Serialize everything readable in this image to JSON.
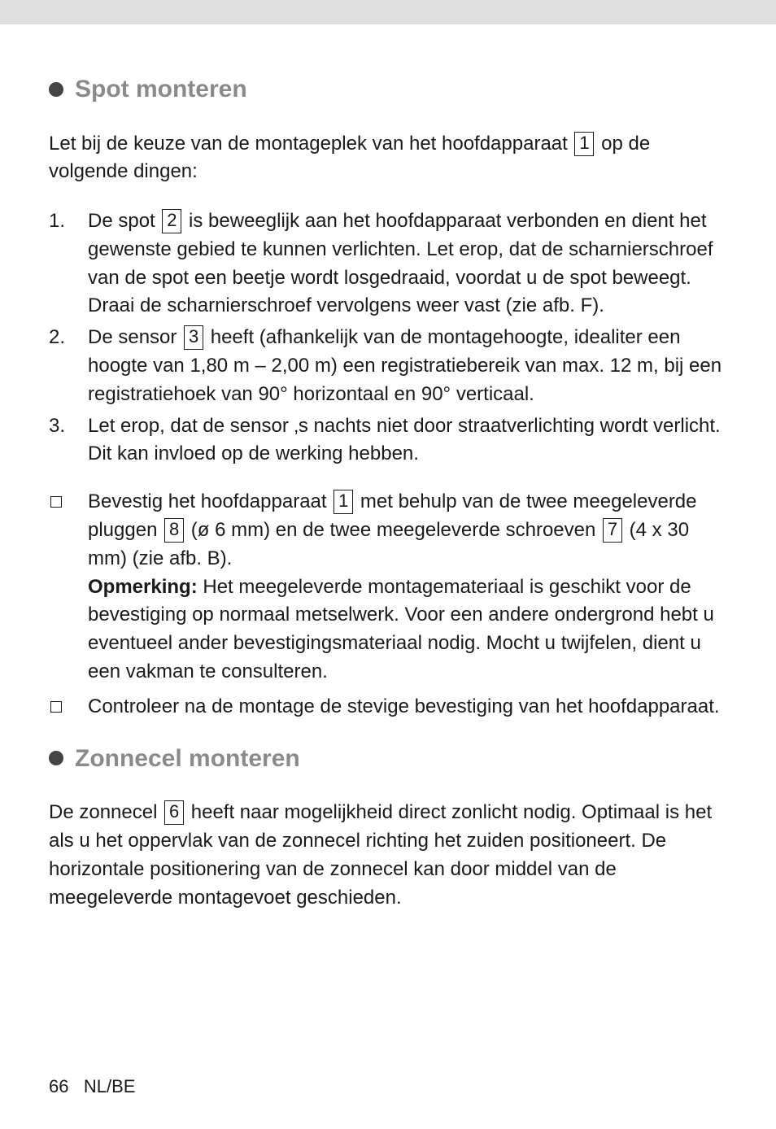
{
  "section1": {
    "title": "Spot monteren",
    "intro_pre": "Let bij de keuze van de montageplek van het hoofdapparaat ",
    "intro_box": "1",
    "intro_post": " op de volgende dingen:",
    "items": [
      {
        "pre": "De spot ",
        "box1": "2",
        "post1": " is beweeglijk aan het hoofdapparaat verbonden en dient het gewenste gebied te kunnen verlichten. Let erop, dat de scharnier­schroef van de spot een beetje wordt losgedraaid, voordat u de spot beweegt. Draai de scharnierschroef vervolgens weer vast (zie afb. F)."
      },
      {
        "pre": "De sensor ",
        "box1": "3",
        "post1": " heeft (afhankelijk van de montagehoogte, idealiter een hoogte van 1,80 m – 2,00 m) een registratiebereik van max. 12 m, bij een registratiehoek van 90° horizontaal en 90° verticaal."
      },
      {
        "pre": "Let erop, dat de sensor ‚s nachts niet door straatverlichting wordt ver­licht. Dit kan invloed op de werking hebben."
      }
    ],
    "bullets": [
      {
        "line1_pre": "Bevestig het hoofdapparaat ",
        "line1_box": "1",
        "line1_post": " met behulp van de twee meegeleverde pluggen ",
        "line1_box2": "8",
        "line1_mid": " (ø 6 mm) en de twee meegeleverde schroeven ",
        "line1_box3": "7",
        "line1_end": " (4 x 30 mm) (zie afb. B).",
        "note_label": "Opmerking:",
        "note_body": " Het meegeleverde montagemateriaal is geschikt voor de bevestiging op normaal metselwerk. Voor een andere ondergrond hebt u eventueel ander bevestigingsmateriaal nodig. Mocht u twijfelen, dient u een vakman te consulteren."
      },
      {
        "text": "Controleer na de montage de stevige bevestiging van het hoofdappa­raat."
      }
    ]
  },
  "section2": {
    "title": "Zonnecel monteren",
    "p1_pre": "De zonnecel ",
    "p1_box": "6",
    "p1_post": " heeft naar mogelijkheid direct zonlicht nodig. Optimaal is het als u het oppervlak van de zonnecel richting het zuiden positioneert. De horizontale positionering van de zonnecel kan door middel van de meegeleverde montagevoet geschieden."
  },
  "footer": {
    "page": "66",
    "region": "NL/BE"
  }
}
